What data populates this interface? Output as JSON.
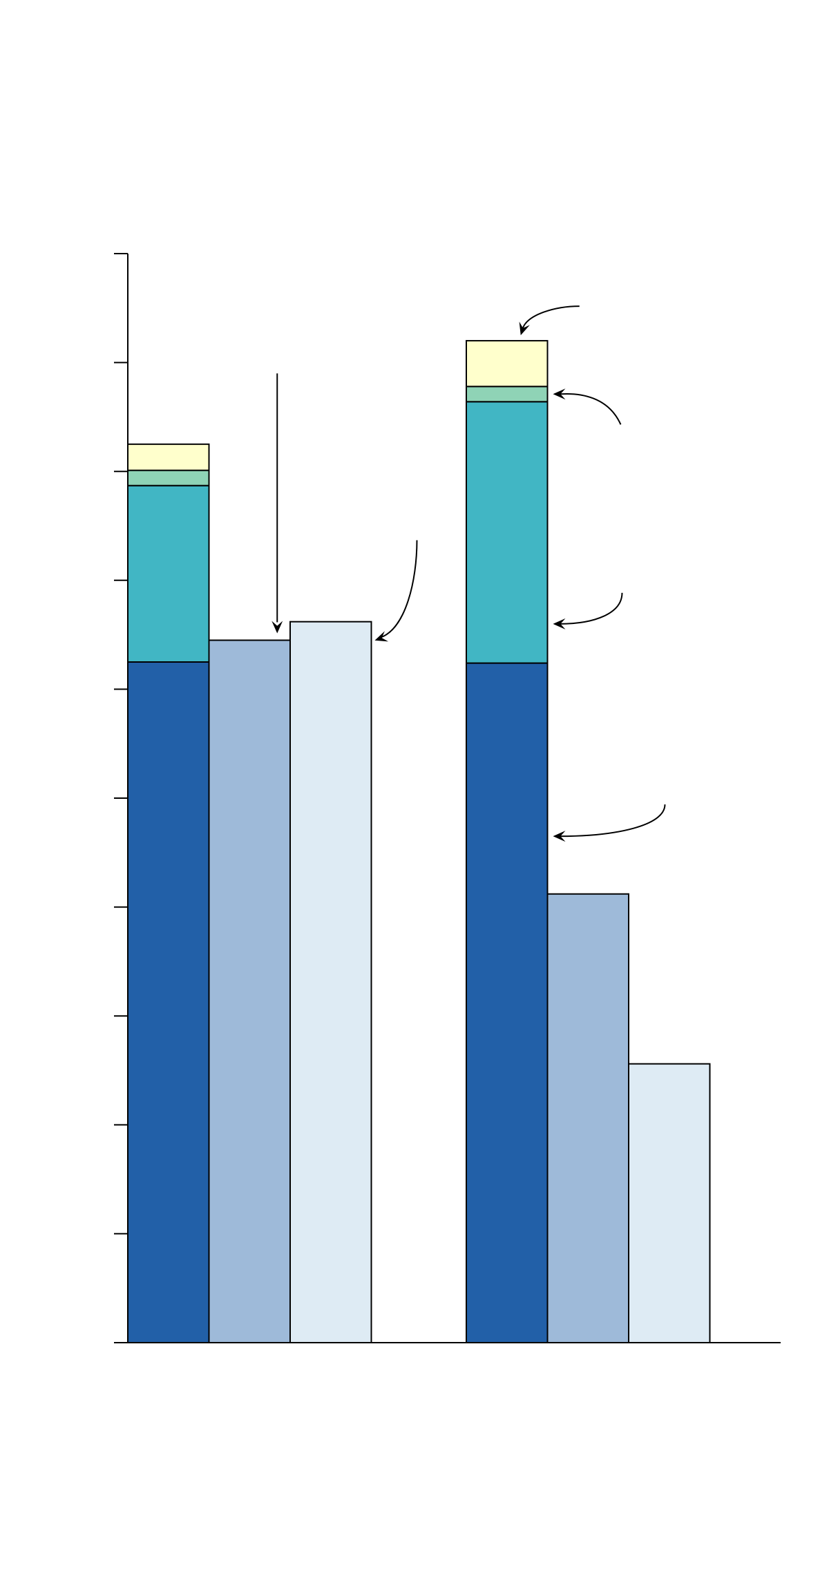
{
  "chart_data": {
    "type": "bar",
    "title": "",
    "xlabel": "",
    "ylabel": "",
    "ylim": [
      0,
      10
    ],
    "yticks": [
      0,
      1,
      2,
      3,
      4,
      5,
      6,
      7,
      8,
      9,
      10
    ],
    "tick_labels_shown": false,
    "grid": false,
    "legend": "none",
    "groups": [
      {
        "stacked_bar": {
          "segments": [
            {
              "value": 6.25,
              "color": "#2260a8"
            },
            {
              "value": 1.62,
              "color": "#41b6c4"
            },
            {
              "value": 0.14,
              "color": "#8fd3b6"
            },
            {
              "value": 0.24,
              "color": "#ffffcc"
            }
          ]
        },
        "bars": [
          {
            "value": 6.45,
            "color": "#9ebad9"
          },
          {
            "value": 6.62,
            "color": "#deebf4"
          }
        ]
      },
      {
        "stacked_bar": {
          "segments": [
            {
              "value": 6.24,
              "color": "#2260a8"
            },
            {
              "value": 2.4,
              "color": "#41b6c4"
            },
            {
              "value": 0.14,
              "color": "#8fd3b6"
            },
            {
              "value": 0.42,
              "color": "#ffffcc"
            }
          ]
        },
        "bars": [
          {
            "value": 4.12,
            "color": "#9ebad9"
          },
          {
            "value": 2.56,
            "color": "#deebf4"
          }
        ]
      }
    ],
    "annotations": [
      {
        "kind": "straight-arrow",
        "points_to": "group-1-bar-2-top"
      },
      {
        "kind": "curved-arrow",
        "points_to": "group-1-bar-3-top"
      },
      {
        "kind": "curved-arrow",
        "points_to": "group-2-stack-segment-4"
      },
      {
        "kind": "curved-arrow",
        "points_to": "group-2-stack-segment-3"
      },
      {
        "kind": "curved-arrow",
        "points_to": "group-2-stack-segment-2"
      },
      {
        "kind": "curved-arrow",
        "points_to": "group-2-stack-segment-1"
      }
    ]
  }
}
